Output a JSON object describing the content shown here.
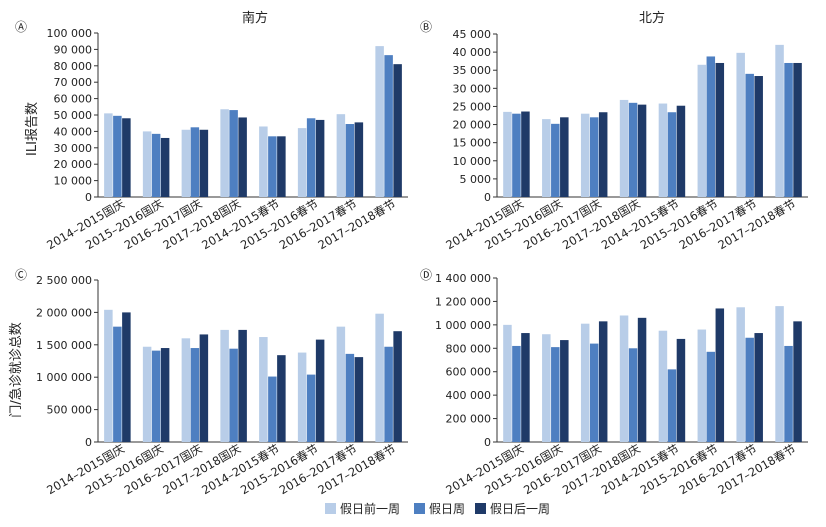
{
  "colors": {
    "before": "#b8cde8",
    "holiday": "#4e7fc1",
    "after": "#1f3a68"
  },
  "legend": [
    "假日前一周",
    "假日周",
    "假日后一周"
  ],
  "row_labels": [
    "ILI报告数",
    "门/急诊就诊总数"
  ],
  "chart_data": [
    {
      "type": "bar",
      "panel": "Ⓐ",
      "title": "南方",
      "categories": [
        "2014–2015国庆",
        "2015–2016国庆",
        "2016–2017国庆",
        "2017–2018国庆",
        "2014–2015春节",
        "2015–2016春节",
        "2016–2017春节",
        "2017–2018春节"
      ],
      "ylim": [
        0,
        100000
      ],
      "yticks": [
        {
          "v": 0,
          "label": "0"
        },
        {
          "v": 10000,
          "label": "10 000"
        },
        {
          "v": 20000,
          "label": "20 000"
        },
        {
          "v": 30000,
          "label": "30 000"
        },
        {
          "v": 40000,
          "label": "40 000"
        },
        {
          "v": 50000,
          "label": "50 000"
        },
        {
          "v": 60000,
          "label": "60 000"
        },
        {
          "v": 70000,
          "label": "70 000"
        },
        {
          "v": 80000,
          "label": "80 000"
        },
        {
          "v": 90000,
          "label": "90 000"
        },
        {
          "v": 100000,
          "label": "100 000"
        }
      ],
      "series": [
        {
          "name": "假日前一周",
          "values": [
            51000,
            40000,
            41000,
            53500,
            43000,
            42000,
            50500,
            92000
          ]
        },
        {
          "name": "假日周",
          "values": [
            49500,
            38500,
            42500,
            53000,
            37000,
            48000,
            44500,
            86500
          ]
        },
        {
          "name": "假日后一周",
          "values": [
            48000,
            36000,
            41000,
            48500,
            37000,
            47000,
            45500,
            81000
          ]
        }
      ]
    },
    {
      "type": "bar",
      "panel": "Ⓑ",
      "title": "北方",
      "categories": [
        "2014–2015国庆",
        "2015–2016国庆",
        "2016–2017国庆",
        "2017–2018国庆",
        "2014–2015春节",
        "2015–2016春节",
        "2016–2017春节",
        "2017–2018春节"
      ],
      "ylim": [
        0,
        45000
      ],
      "yticks": [
        {
          "v": 0,
          "label": "0"
        },
        {
          "v": 5000,
          "label": "5 000"
        },
        {
          "v": 10000,
          "label": "10 000"
        },
        {
          "v": 15000,
          "label": "15 000"
        },
        {
          "v": 20000,
          "label": "20 000"
        },
        {
          "v": 25000,
          "label": "25 000"
        },
        {
          "v": 30000,
          "label": "30 000"
        },
        {
          "v": 35000,
          "label": "35 000"
        },
        {
          "v": 40000,
          "label": "40 000"
        },
        {
          "v": 45000,
          "label": "45 000"
        }
      ],
      "series": [
        {
          "name": "假日前一周",
          "values": [
            23500,
            21500,
            23000,
            26800,
            25800,
            36500,
            39800,
            42000
          ]
        },
        {
          "name": "假日周",
          "values": [
            23000,
            20200,
            22000,
            26000,
            23400,
            38800,
            34000,
            37000
          ]
        },
        {
          "name": "假日后一周",
          "values": [
            23600,
            22000,
            23400,
            25500,
            25200,
            37000,
            33400,
            37000
          ]
        }
      ]
    },
    {
      "type": "bar",
      "panel": "Ⓒ",
      "title": "",
      "categories": [
        "2014–2015国庆",
        "2015–2016国庆",
        "2016–2017国庆",
        "2017–2018国庆",
        "2014–2015春节",
        "2015–2016春节",
        "2016–2017春节",
        "2017–2018春节"
      ],
      "ylim": [
        0,
        2500000
      ],
      "yticks": [
        {
          "v": 0,
          "label": "0"
        },
        {
          "v": 500000,
          "label": "500 000"
        },
        {
          "v": 1000000,
          "label": "1 000 000"
        },
        {
          "v": 1500000,
          "label": "1 500 000"
        },
        {
          "v": 2000000,
          "label": "2 000 000"
        },
        {
          "v": 2500000,
          "label": "2 500 000"
        }
      ],
      "series": [
        {
          "name": "假日前一周",
          "values": [
            2040000,
            1470000,
            1600000,
            1730000,
            1620000,
            1380000,
            1780000,
            1980000
          ]
        },
        {
          "name": "假日周",
          "values": [
            1780000,
            1410000,
            1450000,
            1440000,
            1010000,
            1040000,
            1360000,
            1470000
          ]
        },
        {
          "name": "假日后一周",
          "values": [
            2000000,
            1450000,
            1660000,
            1730000,
            1340000,
            1580000,
            1310000,
            1710000
          ]
        }
      ]
    },
    {
      "type": "bar",
      "panel": "Ⓓ",
      "title": "",
      "categories": [
        "2014–2015国庆",
        "2015–2016国庆",
        "2016–2017国庆",
        "2017–2018国庆",
        "2014–2015春节",
        "2015–2016春节",
        "2016–2017春节",
        "2017–2018春节"
      ],
      "ylim": [
        0,
        1400000
      ],
      "yticks": [
        {
          "v": 0,
          "label": "0"
        },
        {
          "v": 200000,
          "label": "200 000"
        },
        {
          "v": 400000,
          "label": "400 000"
        },
        {
          "v": 600000,
          "label": "600 000"
        },
        {
          "v": 800000,
          "label": "800 000"
        },
        {
          "v": 1000000,
          "label": "1 000 000"
        },
        {
          "v": 1200000,
          "label": "1 200 000"
        },
        {
          "v": 1400000,
          "label": "1 400 000"
        }
      ],
      "series": [
        {
          "name": "假日前一周",
          "values": [
            1000000,
            920000,
            1010000,
            1080000,
            950000,
            960000,
            1150000,
            1160000
          ]
        },
        {
          "name": "假日周",
          "values": [
            820000,
            810000,
            840000,
            800000,
            620000,
            770000,
            890000,
            820000
          ]
        },
        {
          "name": "假日后一周",
          "values": [
            930000,
            870000,
            1030000,
            1060000,
            880000,
            1140000,
            930000,
            1030000
          ]
        }
      ]
    }
  ]
}
